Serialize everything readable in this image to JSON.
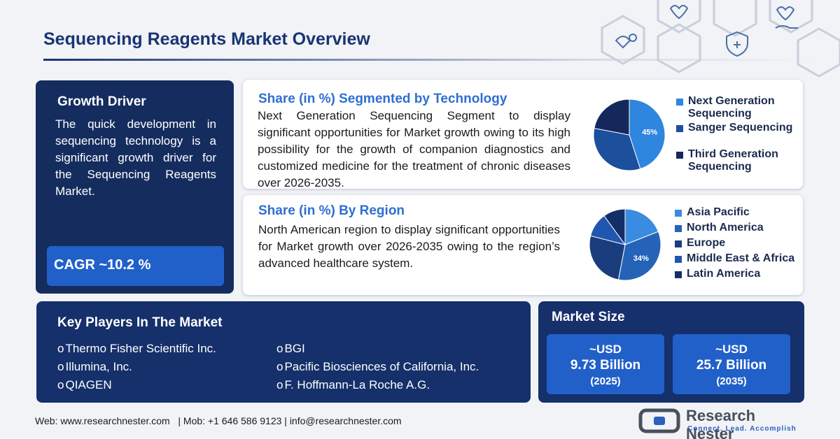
{
  "page": {
    "title": "Sequencing Reagents Market Overview"
  },
  "growth_driver": {
    "title": "Growth Driver",
    "text": "The quick development in sequencing technology is a significant growth driver for the Sequencing Reagents Market.",
    "cagr": "CAGR ~10.2 %"
  },
  "technology": {
    "title": "Share (in %) Segmented by Technology",
    "text": "Next Generation Sequencing Segment to display significant opportunities for Market growth owing to its high possibility for the growth of companion diagnostics and customized medicine for the treatment of chronic diseases over 2026-2035.",
    "highlight_label": "45%",
    "legend": [
      "Next Generation Sequencing",
      "Sanger Sequencing",
      "Third Generation Sequencing"
    ]
  },
  "region": {
    "title": "Share (in %) By Region",
    "text": "North American region to display significant opportunities for Market growth over 2026-2035 owing to the region’s advanced healthcare system.",
    "highlight_label": "34%",
    "legend": [
      "Asia Pacific",
      "North America",
      "Europe",
      "Middle East & Africa",
      "Latin America"
    ]
  },
  "chart_data": [
    {
      "type": "pie",
      "categories": [
        "Next Generation Sequencing",
        "Sanger Sequencing",
        "Third Generation Sequencing"
      ],
      "values": [
        45,
        33,
        22
      ],
      "labels": [
        "45%",
        "",
        ""
      ],
      "colors": [
        "#2e86de",
        "#1c4f9c",
        "#14285c"
      ]
    },
    {
      "type": "pie",
      "categories": [
        "Asia Pacific",
        "North America",
        "Europe",
        "Middle East & Africa",
        "Latin America"
      ],
      "values": [
        19,
        34,
        26,
        11,
        10
      ],
      "labels": [
        "",
        "34%",
        "",
        "",
        ""
      ],
      "colors": [
        "#3b8be0",
        "#2563b8",
        "#1a3d7e",
        "#2156b0",
        "#142e68"
      ]
    }
  ],
  "key_players": {
    "title": "Key Players In The Market",
    "bullet": "o",
    "col1": [
      "Thermo Fisher Scientific Inc.",
      "Illumina, Inc.",
      "QIAGEN"
    ],
    "col2": [
      "BGI",
      "Pacific Biosciences of California, Inc.",
      "F. Hoffmann-La Roche A.G."
    ]
  },
  "market_size": {
    "title": "Market Size",
    "items": [
      {
        "currency": "~USD",
        "value": "9.73 Billion",
        "year": "(2025)"
      },
      {
        "currency": "~USD",
        "value": "25.7 Billion",
        "year": "(2035)"
      }
    ]
  },
  "footer": {
    "text": "Web: www.researchnester.com   | Mob: +1 646 586 9123 | info@researchnester.com"
  },
  "brand": {
    "name": "Research Nester",
    "tagline": "Connect. Lead. Accomplish"
  },
  "colors": {
    "navy": "#142d5e",
    "accent": "#2260c9",
    "title_blue": "#1a3473",
    "card_title": "#2e6fd1"
  }
}
